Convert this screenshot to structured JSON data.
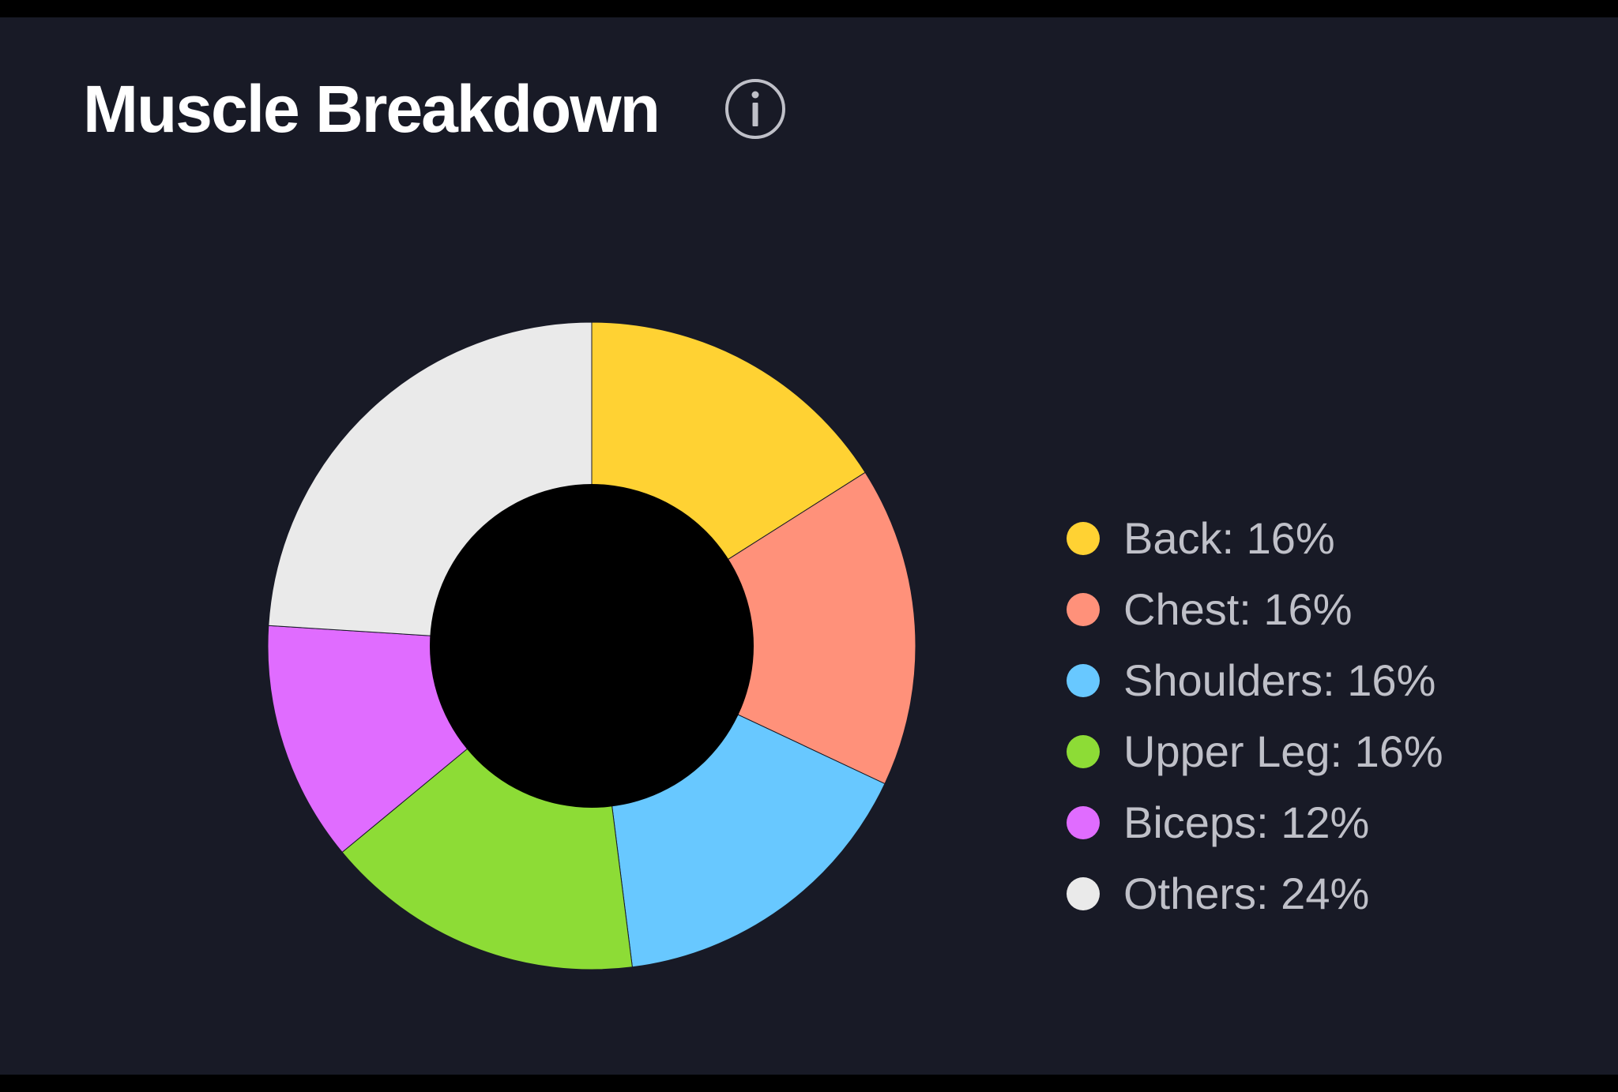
{
  "header": {
    "title": "Muscle Breakdown",
    "info_icon": "info-circle-icon"
  },
  "colors": {
    "card_background": "#181a26",
    "title": "#ffffff",
    "legend_text": "#bfc0c8",
    "donut_hole": "#000000"
  },
  "chart_data": {
    "type": "pie",
    "variant": "donut",
    "legend_placement": "right",
    "start": "top, clockwise",
    "slices": [
      {
        "label": "Back",
        "value": 16,
        "color": "#ffd233",
        "legend_text": "Back: 16%"
      },
      {
        "label": "Chest",
        "value": 16,
        "color": "#ff917a",
        "legend_text": "Chest: 16%"
      },
      {
        "label": "Shoulders",
        "value": 16,
        "color": "#68c8ff",
        "legend_text": "Shoulders: 16%"
      },
      {
        "label": "Upper Leg",
        "value": 16,
        "color": "#8ddc36",
        "legend_text": "Upper Leg: 16%"
      },
      {
        "label": "Biceps",
        "value": 12,
        "color": "#e06cff",
        "legend_text": "Biceps: 12%"
      },
      {
        "label": "Others",
        "value": 24,
        "color": "#eaeaea",
        "legend_text": "Others: 24%"
      }
    ]
  }
}
